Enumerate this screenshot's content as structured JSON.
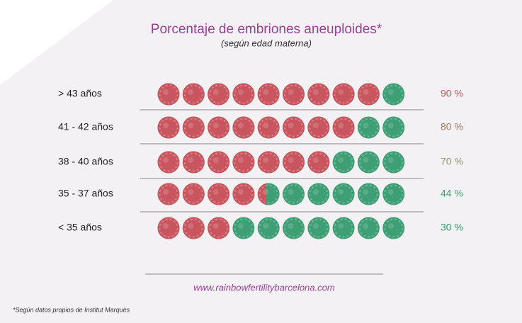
{
  "chart_data": {
    "type": "pictogram",
    "title": "Porcentaje de embriones aneuploides*",
    "subtitle": "(según edad materna)",
    "categories": [
      "> 43 años",
      "41 - 42 años",
      "38 - 40 años",
      "35 - 37 años",
      "< 35 años"
    ],
    "values": [
      90,
      80,
      70,
      44,
      30
    ],
    "value_labels": [
      "90 %",
      "80 %",
      "70 %",
      "44 %",
      "30 %"
    ],
    "label_colors": [
      "#c2555d",
      "#a07a5a",
      "#8a9a6a",
      "#3f9e70",
      "#2f9a62"
    ],
    "xlim": [
      0,
      100
    ],
    "colors": {
      "aneuploid": "#c9565f",
      "euploid": "#3e9e74"
    },
    "source_url": "www.rainbowfertilitybarcelona.com",
    "footnote": "*Según datos propios de Institut Marquès"
  }
}
